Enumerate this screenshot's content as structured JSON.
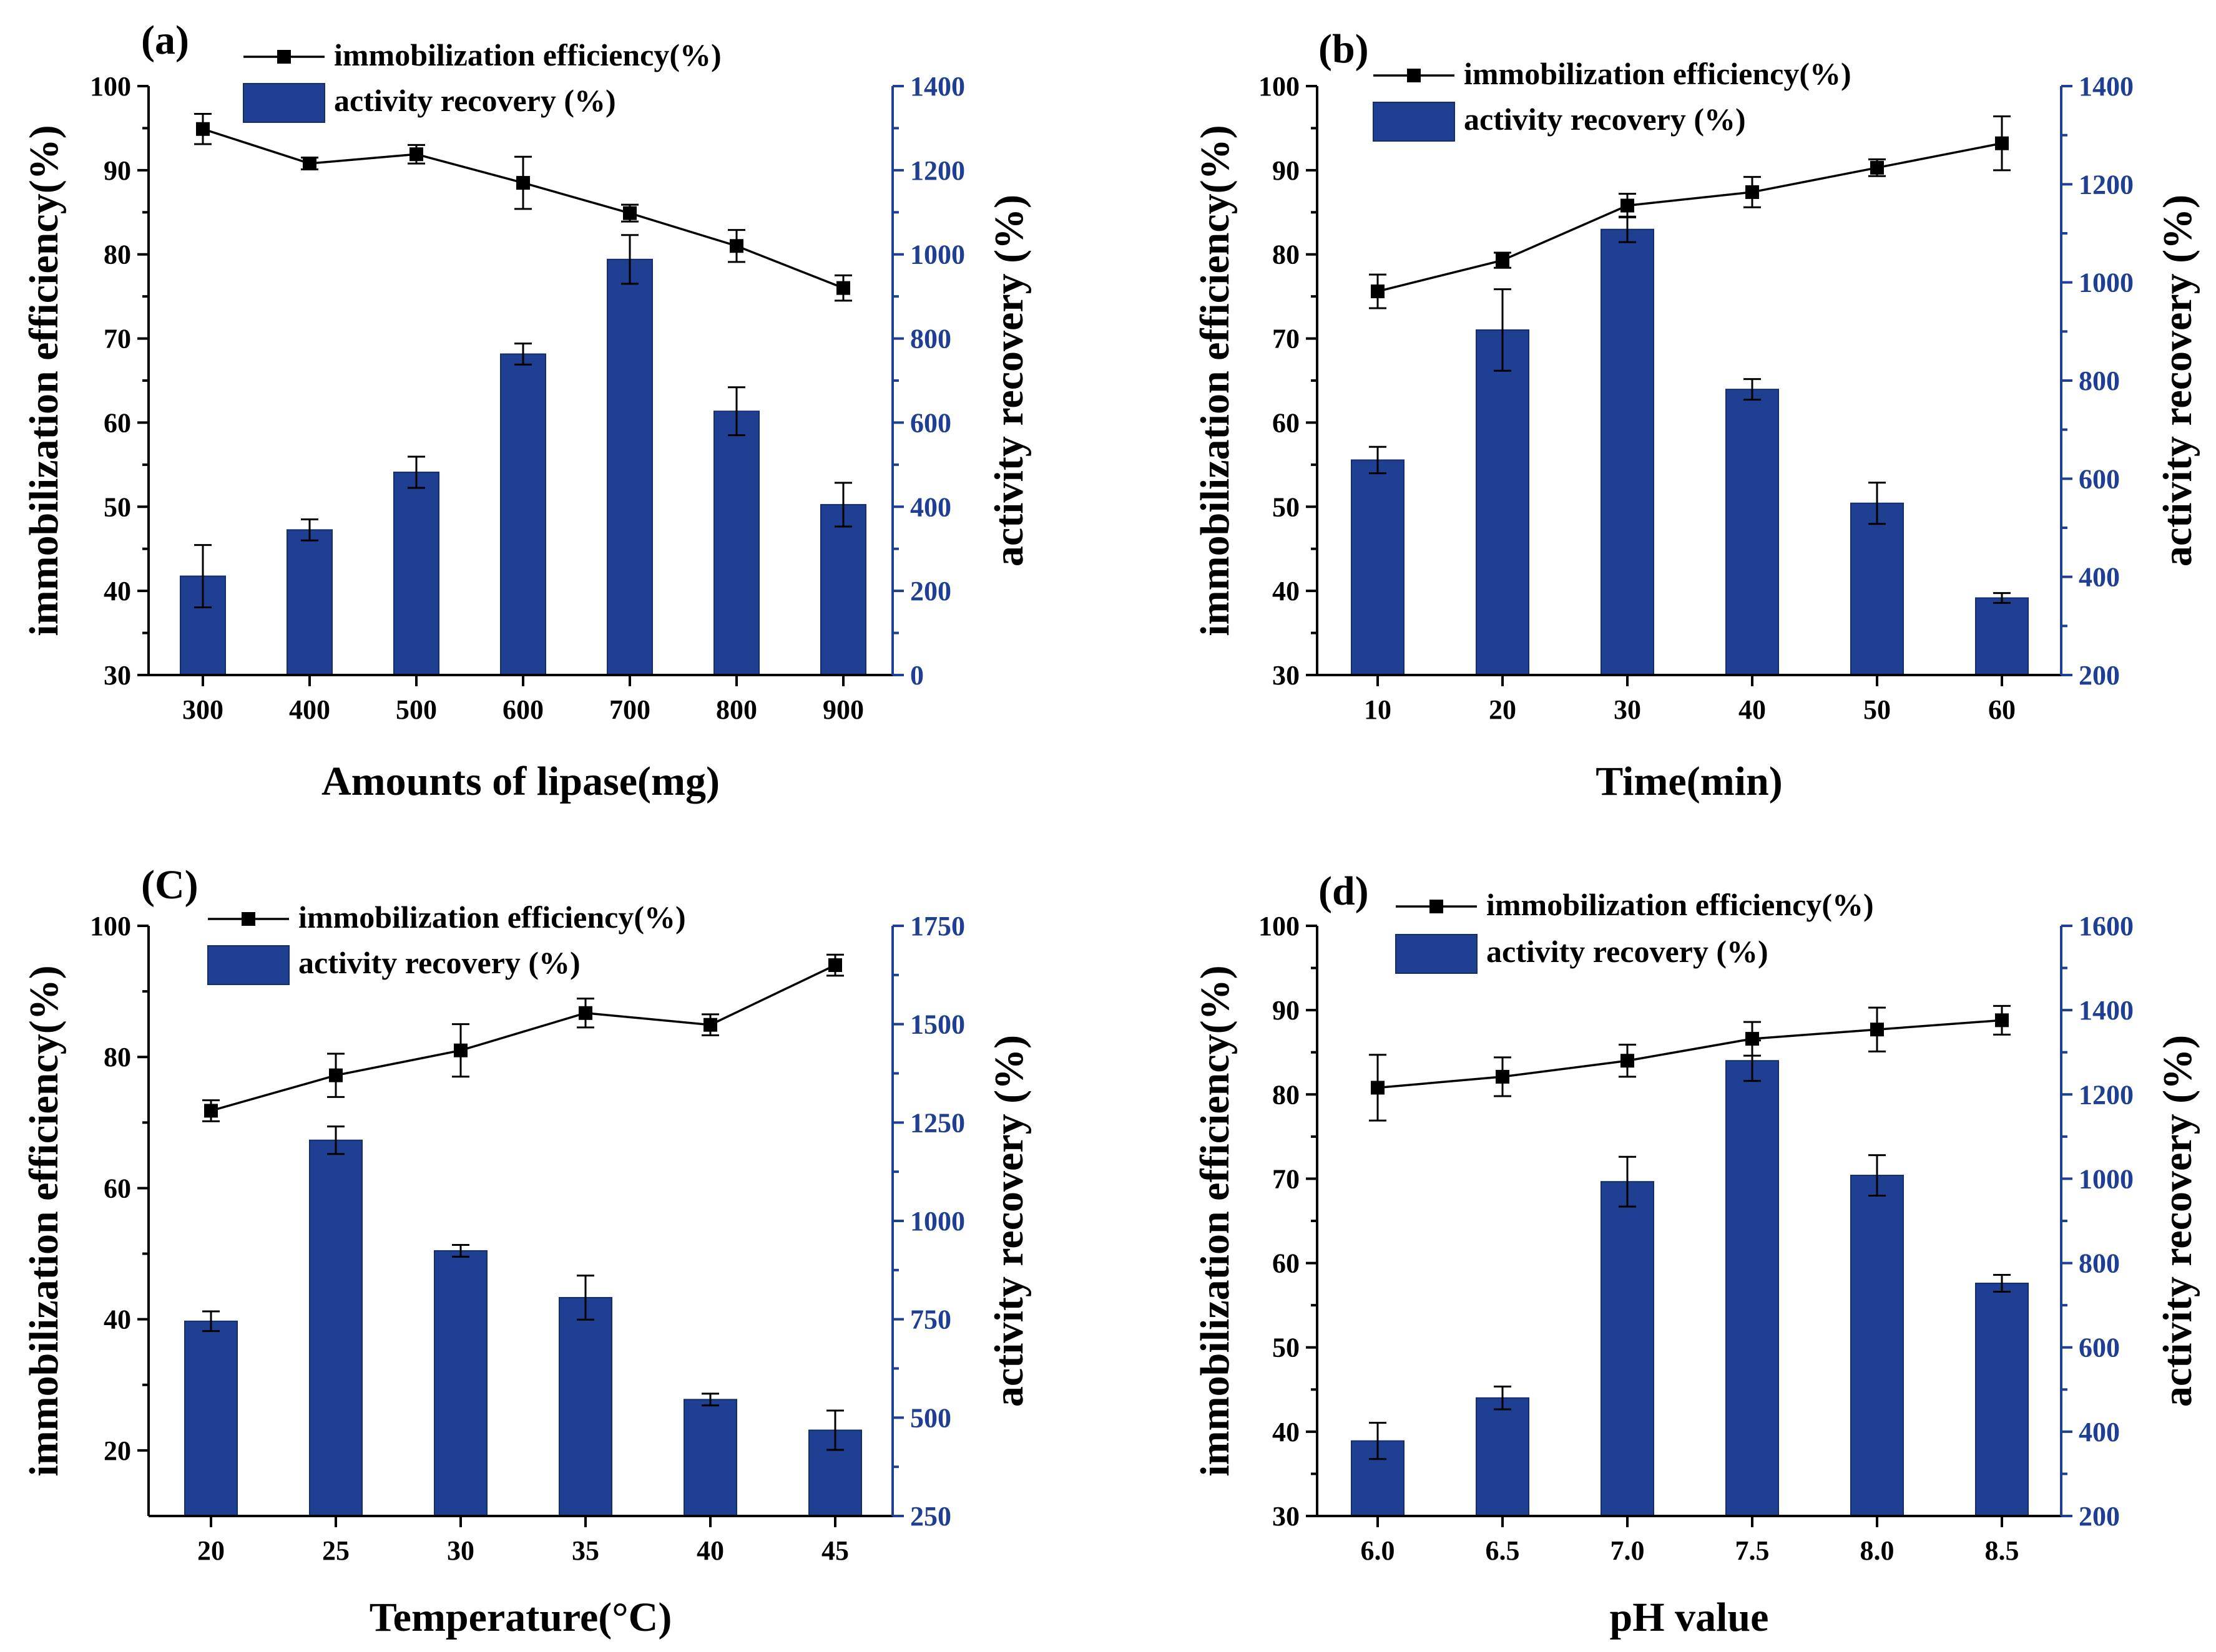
{
  "chart_data": [
    {
      "type": "bar",
      "panel_label": "(a)",
      "xlabel": "Amounts of lipase(mg)",
      "ylabel_left": "immobilization efficiency(%)",
      "ylabel_right": "activity recovery (%)",
      "categories": [
        "300",
        "400",
        "500",
        "600",
        "700",
        "800",
        "900"
      ],
      "ylim_left": [
        30,
        100
      ],
      "yticks_left": [
        "30",
        "40",
        "50",
        "60",
        "70",
        "80",
        "90",
        "100"
      ],
      "ylim_right": [
        0,
        1400
      ],
      "yticks_right": [
        "0",
        "200",
        "400",
        "600",
        "800",
        "1000",
        "1200",
        "1400"
      ],
      "series": [
        {
          "name": "immobilization efficiency(%)",
          "kind": "line",
          "axis": "left",
          "values": [
            94.9,
            90.8,
            91.9,
            88.5,
            84.9,
            81.0,
            76.0
          ],
          "errors": [
            1.8,
            0.7,
            1.1,
            3.1,
            1.0,
            1.9,
            1.5
          ]
        },
        {
          "name": "activity recovery (%)",
          "kind": "bar",
          "axis": "right",
          "values": [
            235,
            345,
            482,
            763,
            988,
            627,
            405
          ],
          "errors": [
            74,
            25,
            37,
            25,
            58,
            57,
            52
          ]
        }
      ]
    },
    {
      "type": "bar",
      "panel_label": "(b)",
      "xlabel": "Time(min)",
      "ylabel_left": "immobilization efficiency(%)",
      "ylabel_right": "activity recovery (%)",
      "categories": [
        "10",
        "20",
        "30",
        "40",
        "50",
        "60"
      ],
      "ylim_left": [
        30,
        100
      ],
      "yticks_left": [
        "30",
        "40",
        "50",
        "60",
        "70",
        "80",
        "90",
        "100"
      ],
      "ylim_right": [
        200,
        1400
      ],
      "yticks_right": [
        "200",
        "400",
        "600",
        "800",
        "1000",
        "1200",
        "1400"
      ],
      "series": [
        {
          "name": "immobilization efficiency(%)",
          "kind": "line",
          "axis": "left",
          "values": [
            75.6,
            79.3,
            85.8,
            87.4,
            90.3,
            93.2
          ],
          "errors": [
            2.0,
            0.9,
            1.4,
            1.8,
            1.0,
            3.2
          ]
        },
        {
          "name": "activity recovery (%)",
          "kind": "bar",
          "axis": "right",
          "values": [
            638,
            903,
            1108,
            782,
            550,
            357
          ],
          "errors": [
            27,
            83,
            26,
            21,
            42,
            10
          ]
        }
      ]
    },
    {
      "type": "bar",
      "panel_label": "(C)",
      "xlabel": "Temperature(°C)",
      "ylabel_left": "immobilization efficiency(%)",
      "ylabel_right": "activity recovery (%)",
      "categories": [
        "20",
        "25",
        "30",
        "35",
        "40",
        "45"
      ],
      "ylim_left": [
        10,
        100
      ],
      "yticks_left": [
        "20",
        "40",
        "60",
        "80",
        "100"
      ],
      "ylim_right": [
        250,
        1750
      ],
      "yticks_right": [
        "250",
        "500",
        "750",
        "1000",
        "1250",
        "1500",
        "1750"
      ],
      "series": [
        {
          "name": "immobilization efficiency(%)",
          "kind": "line",
          "axis": "left",
          "values": [
            71.8,
            77.2,
            81.0,
            86.7,
            84.9,
            94.0
          ],
          "errors": [
            1.6,
            3.3,
            4.0,
            2.2,
            1.6,
            1.6
          ]
        },
        {
          "name": "activity recovery (%)",
          "kind": "bar",
          "axis": "right",
          "values": [
            745,
            1205,
            924,
            805,
            546,
            468
          ],
          "errors": [
            25,
            35,
            15,
            56,
            15,
            50
          ]
        }
      ]
    },
    {
      "type": "bar",
      "panel_label": "(d)",
      "xlabel": "pH value",
      "ylabel_left": "immobilization efficiency(%)",
      "ylabel_right": "activity recovery (%)",
      "categories": [
        "6.0",
        "6.5",
        "7.0",
        "7.5",
        "8.0",
        "8.5"
      ],
      "ylim_left": [
        30,
        100
      ],
      "yticks_left": [
        "30",
        "40",
        "50",
        "60",
        "70",
        "80",
        "90",
        "100"
      ],
      "ylim_right": [
        200,
        1600
      ],
      "yticks_right": [
        "200",
        "400",
        "600",
        "800",
        "1000",
        "1200",
        "1400",
        "1600"
      ],
      "series": [
        {
          "name": "immobilization efficiency(%)",
          "kind": "line",
          "axis": "left",
          "values": [
            80.8,
            82.1,
            84.0,
            86.6,
            87.7,
            88.8
          ],
          "errors": [
            3.9,
            2.3,
            1.9,
            2.0,
            2.6,
            1.7
          ]
        },
        {
          "name": "activity recovery (%)",
          "kind": "bar",
          "axis": "right",
          "values": [
            378,
            480,
            993,
            1280,
            1008,
            752
          ],
          "errors": [
            43,
            27,
            59,
            48,
            48,
            20
          ]
        }
      ]
    }
  ]
}
